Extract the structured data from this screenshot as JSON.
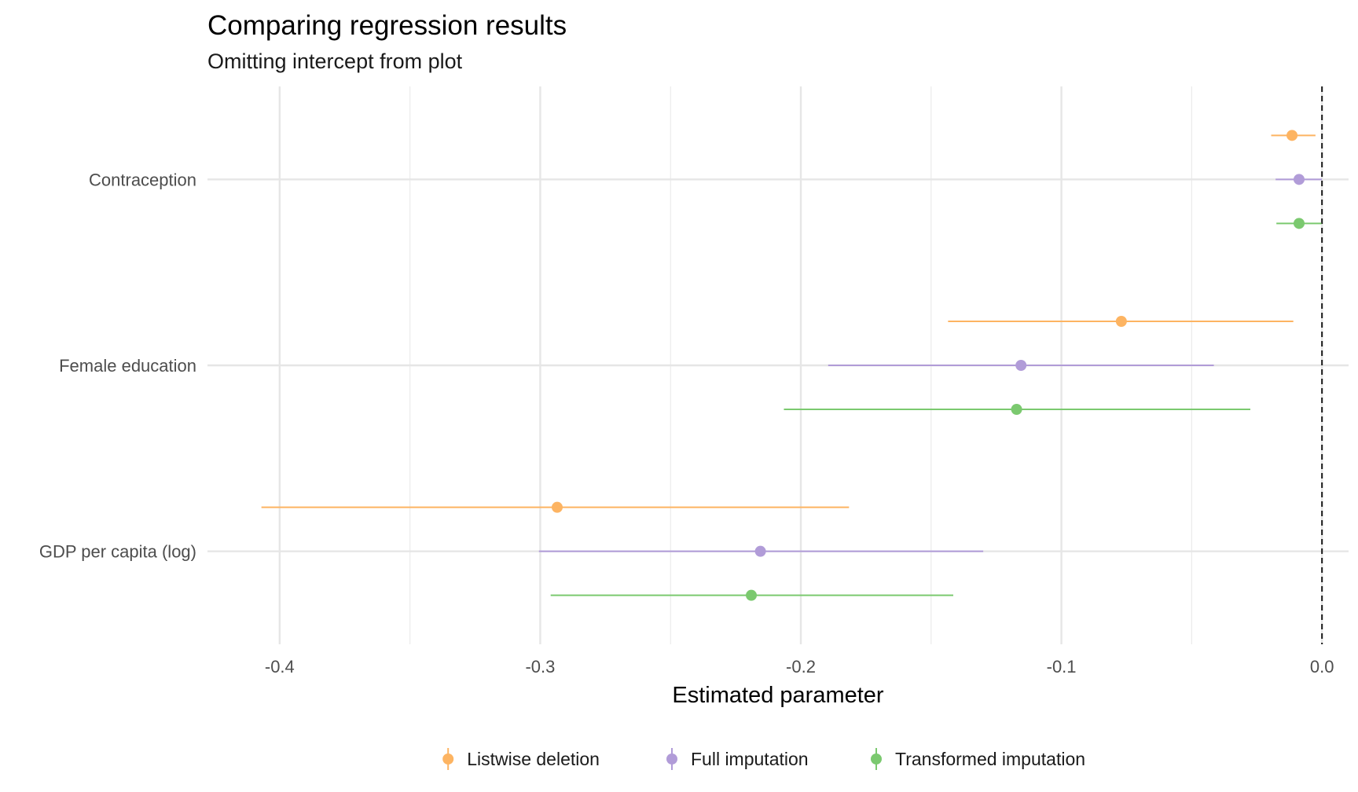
{
  "chart_data": {
    "type": "scatter",
    "subtype": "coefficient-plot",
    "title": "Comparing regression results",
    "subtitle": "Omitting intercept from plot",
    "xlabel": "Estimated parameter",
    "ylabel": "",
    "xlim": [
      -0.4277,
      0.0102
    ],
    "xticks": [
      -0.4,
      -0.3,
      -0.2,
      -0.1,
      0.0
    ],
    "xtick_labels": [
      "-0.4",
      "-0.3",
      "-0.2",
      "-0.1",
      "0.0"
    ],
    "reference_line": 0.0,
    "grid": true,
    "legend_position": "bottom",
    "categories": [
      "Contraception",
      "Female education",
      "GDP per capita (log)"
    ],
    "series": [
      {
        "name": "Listwise deletion",
        "color": "#FDB462",
        "points": [
          {
            "category": "Contraception",
            "estimate": -0.0115,
            "low": -0.0195,
            "high": -0.0025
          },
          {
            "category": "Female education",
            "estimate": -0.077,
            "low": -0.1435,
            "high": -0.011
          },
          {
            "category": "GDP per capita (log)",
            "estimate": -0.2935,
            "low": -0.407,
            "high": -0.1815
          }
        ]
      },
      {
        "name": "Full imputation",
        "color": "#B19CD8",
        "points": [
          {
            "category": "Contraception",
            "estimate": -0.0088,
            "low": -0.0178,
            "high": 0.0
          },
          {
            "category": "Female education",
            "estimate": -0.1155,
            "low": -0.1895,
            "high": -0.0415
          },
          {
            "category": "GDP per capita (log)",
            "estimate": -0.2155,
            "low": -0.3005,
            "high": -0.13
          }
        ]
      },
      {
        "name": "Transformed imputation",
        "color": "#7BC96F",
        "points": [
          {
            "category": "Contraception",
            "estimate": -0.0088,
            "low": -0.0175,
            "high": -0.0002
          },
          {
            "category": "Female education",
            "estimate": -0.1172,
            "low": -0.2065,
            "high": -0.0275
          },
          {
            "category": "GDP per capita (log)",
            "estimate": -0.219,
            "low": -0.296,
            "high": -0.1415
          }
        ]
      }
    ]
  }
}
